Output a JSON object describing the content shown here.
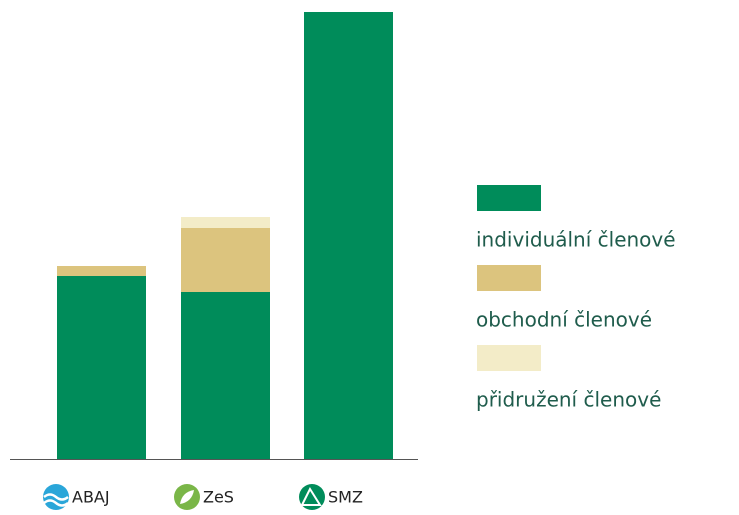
{
  "chart_data": {
    "type": "stacked_bar",
    "categories": [
      "ABAJ",
      "ZeS",
      "SMZ"
    ],
    "series": [
      {
        "name": "individuální členové",
        "color": "#008c5a",
        "values": [
          183,
          167,
          447
        ]
      },
      {
        "name": "obchodní členové",
        "color": "#dcc47e",
        "values": [
          10,
          64,
          0
        ]
      },
      {
        "name": "přidružení členové",
        "color": "#f3ecc8",
        "values": [
          0,
          11,
          0
        ]
      }
    ],
    "ylim": [
      0,
      447
    ],
    "legend": "right"
  }
}
